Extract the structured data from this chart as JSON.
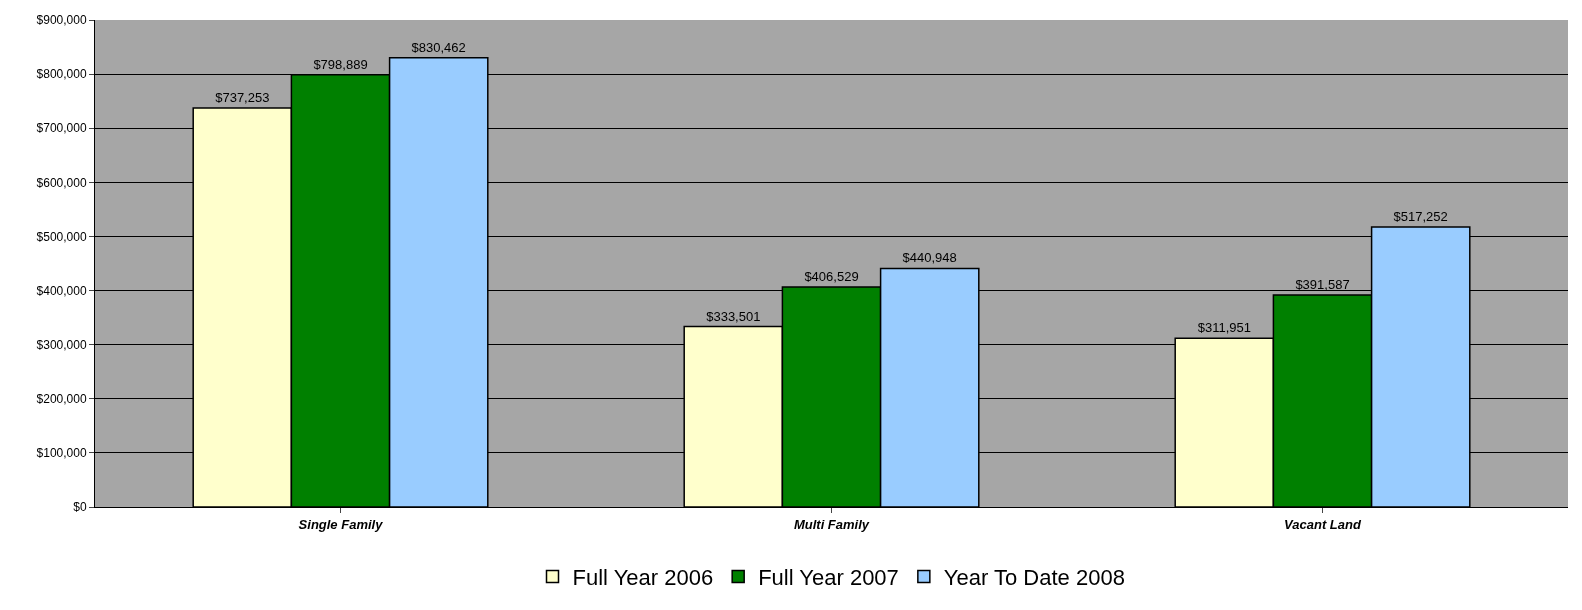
{
  "chart_data": {
    "type": "bar",
    "categories": [
      "Single Family",
      "Multi Family",
      "Vacant Land"
    ],
    "series": [
      {
        "name": "Full Year 2006",
        "color": "#ffffcc",
        "values": [
          737253,
          333501,
          311951
        ]
      },
      {
        "name": "Full Year 2007",
        "color": "#008000",
        "values": [
          798889,
          406529,
          391587
        ]
      },
      {
        "name": "Year To Date 2008",
        "color": "#99ccff",
        "values": [
          830462,
          440948,
          517252
        ]
      }
    ],
    "ylim": [
      0,
      900000
    ],
    "yticks": [
      {
        "value": 0,
        "label": "$0"
      },
      {
        "value": 100000,
        "label": "$100,000"
      },
      {
        "value": 200000,
        "label": "$200,000"
      },
      {
        "value": 300000,
        "label": "$300,000"
      },
      {
        "value": 400000,
        "label": "$400,000"
      },
      {
        "value": 500000,
        "label": "$500,000"
      },
      {
        "value": 600000,
        "label": "$600,000"
      },
      {
        "value": 700000,
        "label": "$700,000"
      },
      {
        "value": 800000,
        "label": "$800,000"
      },
      {
        "value": 900000,
        "label": "$900,000"
      }
    ],
    "value_labels": [
      [
        "$737,253",
        "$333,501",
        "$311,951"
      ],
      [
        "$798,889",
        "$406,529",
        "$391,587"
      ],
      [
        "$830,462",
        "$440,948",
        "$517,252"
      ]
    ],
    "grid": "y",
    "legend": "bottom"
  }
}
